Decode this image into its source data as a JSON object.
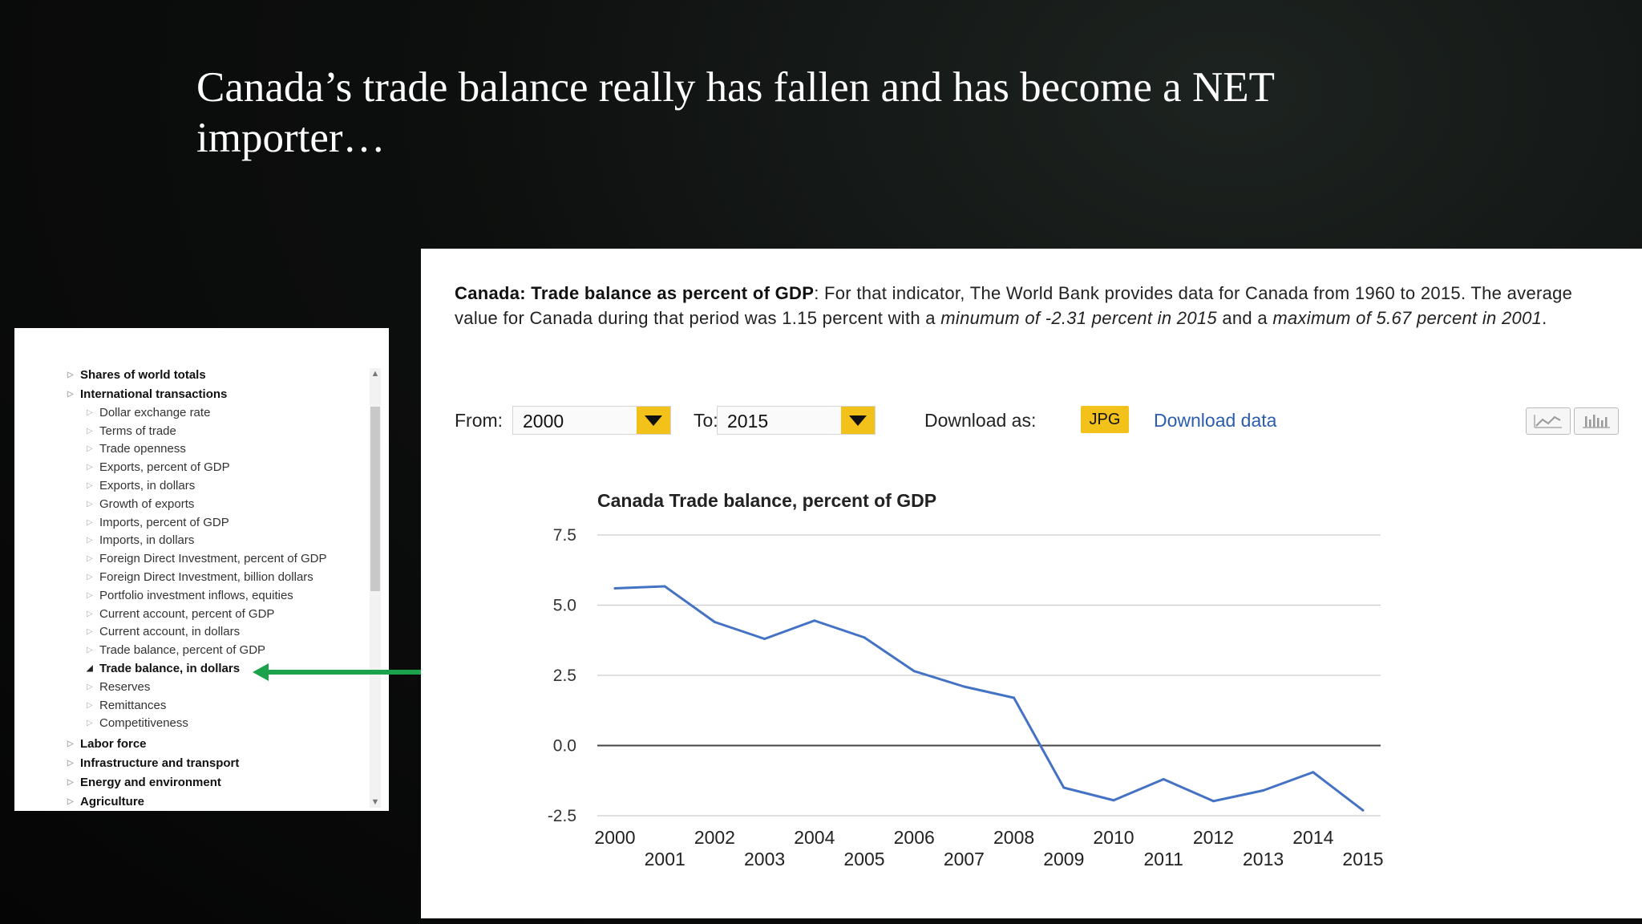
{
  "slide": {
    "title": "Canada’s trade balance really has fallen and has become a NET importer…"
  },
  "sidebar": {
    "items": [
      {
        "label": "Shares of world totals",
        "level": 0
      },
      {
        "label": "International transactions",
        "level": 0
      },
      {
        "label": "Dollar exchange rate",
        "level": 1
      },
      {
        "label": "Terms of trade",
        "level": 1
      },
      {
        "label": "Trade openness",
        "level": 1
      },
      {
        "label": "Exports, percent of GDP",
        "level": 1
      },
      {
        "label": "Exports, in dollars",
        "level": 1
      },
      {
        "label": "Growth of exports",
        "level": 1
      },
      {
        "label": "Imports, percent of GDP",
        "level": 1
      },
      {
        "label": "Imports, in dollars",
        "level": 1
      },
      {
        "label": "Foreign Direct Investment, percent of GDP",
        "level": 1
      },
      {
        "label": "Foreign Direct Investment, billion dollars",
        "level": 1
      },
      {
        "label": "Portfolio investment inflows, equities",
        "level": 1
      },
      {
        "label": "Current account, percent of GDP",
        "level": 1
      },
      {
        "label": "Current account, in dollars",
        "level": 1
      },
      {
        "label": "Trade balance, percent of GDP",
        "level": 1
      },
      {
        "label": "Trade balance, in dollars",
        "level": 1,
        "active": true
      },
      {
        "label": "Reserves",
        "level": 1
      },
      {
        "label": "Remittances",
        "level": 1
      },
      {
        "label": "Competitiveness",
        "level": 1
      },
      {
        "label": "Labor force",
        "level": 0
      },
      {
        "label": "Infrastructure and transport",
        "level": 0
      },
      {
        "label": "Energy and environment",
        "level": 0
      },
      {
        "label": "Agriculture",
        "level": 0
      }
    ]
  },
  "description": {
    "bold": "Canada: Trade balance as percent of GDP",
    "text1": ": For that indicator, The World Bank provides data for Canada from 1960 to 2015. The average value for Canada during that period was 1.15 percent with a ",
    "italic1": "minumum of -2.31 percent in 2015",
    "text2": " and a ",
    "italic2": "maximum of 5.67 percent in 2001",
    "text3": "."
  },
  "controls": {
    "from_label": "From:",
    "from_value": "2000",
    "to_label": "To:",
    "to_value": "2015",
    "download_label": "Download as:",
    "jpg_label": "JPG",
    "download_data": "Download data",
    "line_icon": "line-chart-icon",
    "bar_icon": "bar-chart-icon"
  },
  "colors": {
    "accent_yellow": "#f2c21b",
    "line_blue": "#4472c4",
    "arrow_green": "#1aa34a",
    "link_blue": "#2a5db0"
  },
  "chart_data": {
    "type": "line",
    "title": "Canada Trade balance, percent of GDP",
    "xlabel": "",
    "ylabel": "",
    "x": [
      2000,
      2001,
      2002,
      2003,
      2004,
      2005,
      2006,
      2007,
      2008,
      2009,
      2010,
      2011,
      2012,
      2013,
      2014,
      2015
    ],
    "series": [
      {
        "values": [
          5.6,
          5.67,
          4.4,
          3.8,
          4.45,
          3.85,
          2.65,
          2.1,
          1.7,
          -1.5,
          -1.95,
          -1.2,
          -1.98,
          -1.6,
          -0.95,
          -2.31
        ]
      }
    ],
    "ylim": [
      -2.5,
      7.5
    ],
    "yticks": [
      "7.5",
      "5.0",
      "2.5",
      "0.0",
      "-2.5"
    ],
    "xticks": [
      "2000",
      "2001",
      "2002",
      "2003",
      "2004",
      "2005",
      "2006",
      "2007",
      "2008",
      "2009",
      "2010",
      "2011",
      "2012",
      "2013",
      "2014",
      "2015"
    ],
    "grid": true
  }
}
